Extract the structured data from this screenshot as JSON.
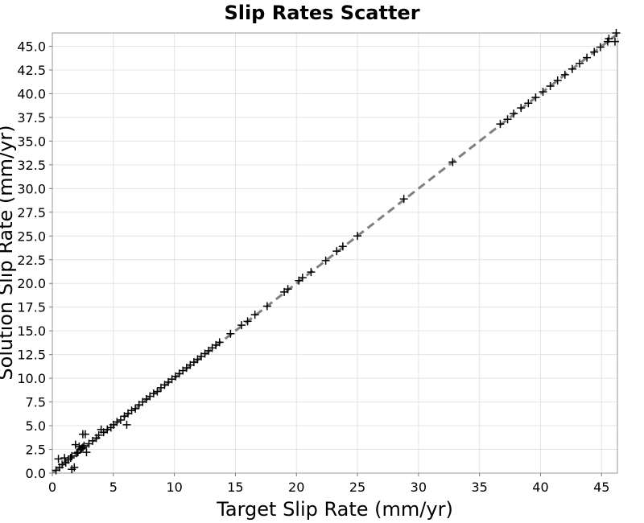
{
  "chart_data": {
    "type": "scatter",
    "title": "Slip Rates Scatter",
    "xlabel": "Target Slip Rate (mm/yr)",
    "ylabel": "Solution Slip Rate (mm/yr)",
    "xlim": [
      0,
      46.3
    ],
    "ylim": [
      0,
      46.4
    ],
    "x_ticks": [
      0,
      5,
      10,
      15,
      20,
      25,
      30,
      35,
      40,
      45
    ],
    "y_ticks": [
      0.0,
      2.5,
      5.0,
      7.5,
      10.0,
      12.5,
      15.0,
      17.5,
      20.0,
      22.5,
      25.0,
      27.5,
      30.0,
      32.5,
      35.0,
      37.5,
      40.0,
      42.5,
      45.0
    ],
    "y_tick_labels": [
      "0.0",
      "2.5",
      "5.0",
      "7.5",
      "10.0",
      "12.5",
      "15.0",
      "17.5",
      "20.0",
      "22.5",
      "25.0",
      "27.5",
      "30.0",
      "32.5",
      "35.0",
      "37.5",
      "40.0",
      "42.5",
      "45.0"
    ],
    "grid": true,
    "legend": "none",
    "colors": {
      "points": "#000000",
      "reference_line": "#808080",
      "grid": "#e4e4e4"
    },
    "reference_line": {
      "style": "dashed",
      "points": [
        [
          0,
          0
        ],
        [
          46.3,
          46.3
        ]
      ]
    },
    "series": [
      {
        "marker": "plus",
        "points": [
          [
            0.3,
            0.3
          ],
          [
            0.5,
            1.5
          ],
          [
            0.6,
            0.6
          ],
          [
            0.8,
            0.9
          ],
          [
            1.0,
            1.6
          ],
          [
            1.1,
            1.1
          ],
          [
            1.3,
            1.4
          ],
          [
            1.5,
            1.6
          ],
          [
            1.6,
            1.8
          ],
          [
            1.6,
            0.4
          ],
          [
            1.8,
            0.6
          ],
          [
            1.9,
            3.0
          ],
          [
            2.0,
            2.1
          ],
          [
            2.1,
            2.2
          ],
          [
            2.2,
            2.8
          ],
          [
            2.3,
            2.5
          ],
          [
            2.4,
            2.6
          ],
          [
            2.5,
            2.7
          ],
          [
            2.5,
            4.1
          ],
          [
            2.6,
            2.9
          ],
          [
            2.7,
            4.1
          ],
          [
            2.8,
            2.2
          ],
          [
            3.0,
            3.1
          ],
          [
            3.3,
            3.4
          ],
          [
            3.6,
            3.7
          ],
          [
            3.8,
            4.0
          ],
          [
            4.0,
            4.6
          ],
          [
            4.2,
            4.3
          ],
          [
            4.5,
            4.6
          ],
          [
            4.8,
            4.8
          ],
          [
            5.0,
            5.1
          ],
          [
            5.3,
            5.4
          ],
          [
            5.6,
            5.6
          ],
          [
            5.9,
            6.0
          ],
          [
            6.1,
            5.1
          ],
          [
            6.2,
            6.3
          ],
          [
            6.5,
            6.6
          ],
          [
            6.8,
            6.8
          ],
          [
            7.1,
            7.2
          ],
          [
            7.4,
            7.5
          ],
          [
            7.7,
            7.8
          ],
          [
            8.0,
            8.1
          ],
          [
            8.3,
            8.4
          ],
          [
            8.6,
            8.6
          ],
          [
            8.9,
            9.0
          ],
          [
            9.2,
            9.3
          ],
          [
            9.5,
            9.6
          ],
          [
            9.8,
            9.9
          ],
          [
            10.1,
            10.2
          ],
          [
            10.4,
            10.5
          ],
          [
            10.7,
            10.8
          ],
          [
            11.0,
            11.1
          ],
          [
            11.3,
            11.4
          ],
          [
            11.6,
            11.7
          ],
          [
            11.9,
            12.0
          ],
          [
            12.2,
            12.3
          ],
          [
            12.5,
            12.6
          ],
          [
            12.8,
            12.9
          ],
          [
            13.1,
            13.2
          ],
          [
            13.4,
            13.5
          ],
          [
            13.7,
            13.8
          ],
          [
            14.6,
            14.7
          ],
          [
            15.5,
            15.6
          ],
          [
            16.0,
            16.0
          ],
          [
            16.6,
            16.7
          ],
          [
            17.6,
            17.6
          ],
          [
            19.0,
            19.1
          ],
          [
            19.3,
            19.4
          ],
          [
            20.2,
            20.3
          ],
          [
            20.5,
            20.6
          ],
          [
            21.2,
            21.2
          ],
          [
            22.4,
            22.4
          ],
          [
            23.3,
            23.4
          ],
          [
            23.8,
            23.9
          ],
          [
            25.0,
            25.0
          ],
          [
            28.8,
            28.9
          ],
          [
            32.8,
            32.8
          ],
          [
            36.7,
            36.8
          ],
          [
            37.3,
            37.3
          ],
          [
            37.8,
            37.9
          ],
          [
            38.4,
            38.5
          ],
          [
            39.0,
            39.0
          ],
          [
            39.6,
            39.6
          ],
          [
            40.2,
            40.2
          ],
          [
            40.8,
            40.8
          ],
          [
            41.4,
            41.4
          ],
          [
            42.0,
            42.0
          ],
          [
            42.6,
            42.6
          ],
          [
            43.2,
            43.2
          ],
          [
            43.8,
            43.8
          ],
          [
            44.4,
            44.4
          ],
          [
            44.9,
            44.9
          ],
          [
            45.5,
            45.5
          ],
          [
            45.6,
            45.8
          ],
          [
            46.1,
            45.5
          ],
          [
            46.2,
            46.4
          ]
        ]
      }
    ]
  }
}
